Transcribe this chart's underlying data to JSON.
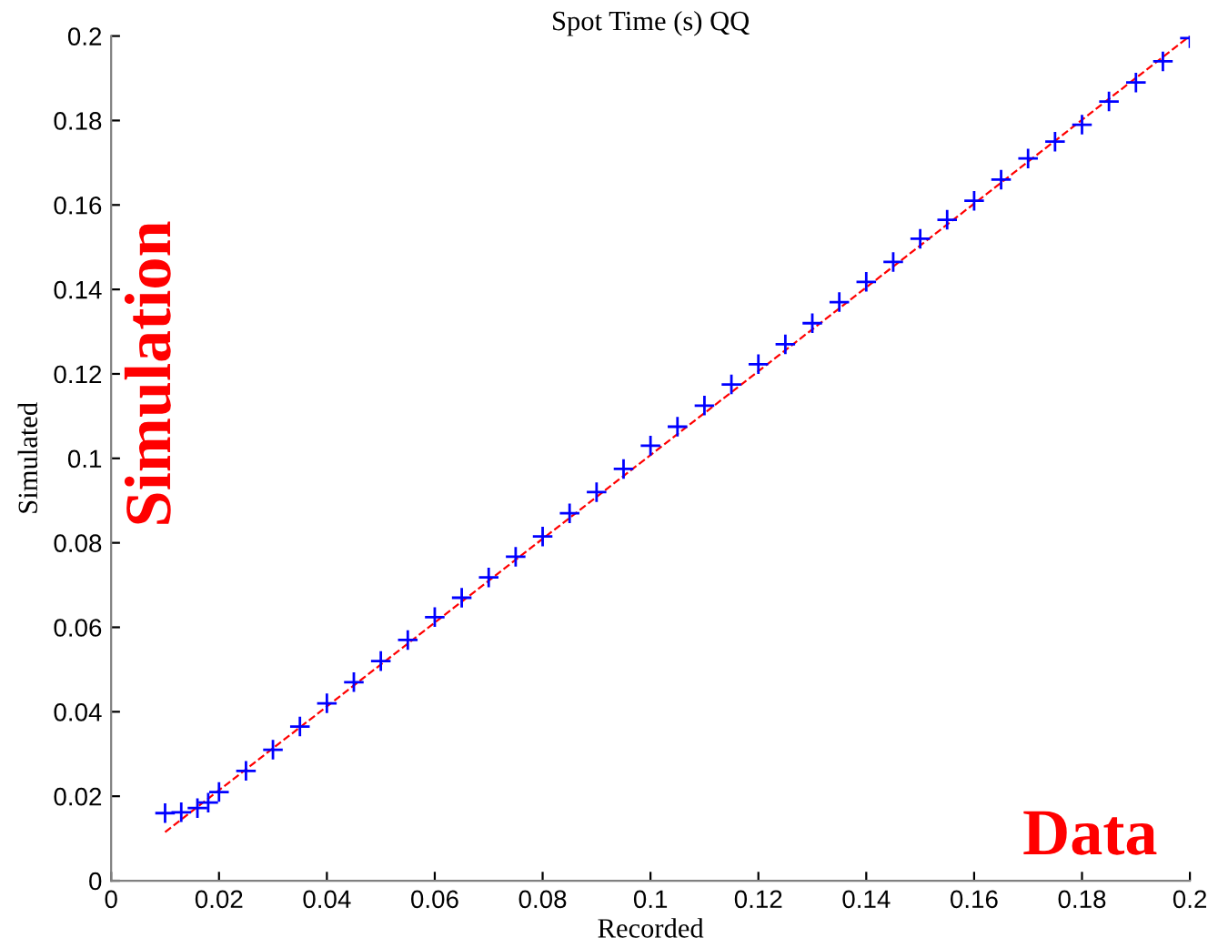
{
  "chart_data": {
    "type": "scatter",
    "title": "Spot Time (s) QQ",
    "xlabel": "Recorded",
    "ylabel": "Simulated",
    "annotations": [
      "Simulation",
      "Data"
    ],
    "series": [
      {
        "color": "#0000ff",
        "marker": "cross",
        "x": [
          0.01,
          0.013,
          0.016,
          0.018,
          0.02,
          0.025,
          0.03,
          0.035,
          0.04,
          0.045,
          0.05,
          0.055,
          0.06,
          0.065,
          0.07,
          0.075,
          0.08,
          0.085,
          0.09,
          0.095,
          0.1,
          0.105,
          0.11,
          0.115,
          0.12,
          0.125,
          0.13,
          0.135,
          0.14,
          0.145,
          0.15,
          0.155,
          0.16,
          0.165,
          0.17,
          0.175,
          0.18,
          0.185,
          0.19,
          0.195,
          0.2
        ],
        "values": [
          0.016,
          0.0162,
          0.0172,
          0.0185,
          0.021,
          0.026,
          0.031,
          0.0365,
          0.042,
          0.047,
          0.052,
          0.057,
          0.0624,
          0.067,
          0.0718,
          0.0767,
          0.0815,
          0.087,
          0.092,
          0.0975,
          0.103,
          0.1075,
          0.1125,
          0.1175,
          0.1223,
          0.127,
          0.132,
          0.137,
          0.1418,
          0.1465,
          0.152,
          0.1565,
          0.161,
          0.166,
          0.171,
          0.175,
          0.179,
          0.1845,
          0.189,
          0.194,
          0.1995
        ]
      },
      {
        "type": "line",
        "color": "#ff0000",
        "line_style": "dashed",
        "marker": "none",
        "x": [
          0.01,
          0.2
        ],
        "values": [
          0.0115,
          0.2
        ]
      }
    ],
    "xlim": [
      0,
      0.2
    ],
    "ylim": [
      0,
      0.2
    ],
    "xticks": [
      0,
      0.02,
      0.04,
      0.06,
      0.08,
      0.1,
      0.12,
      0.14,
      0.16,
      0.18,
      0.2
    ],
    "yticks": [
      0,
      0.02,
      0.04,
      0.06,
      0.08,
      0.1,
      0.12,
      0.14,
      0.16,
      0.18,
      0.2
    ],
    "grid": false
  }
}
